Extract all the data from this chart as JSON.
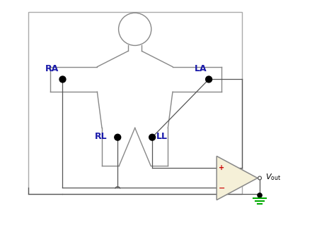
{
  "bg_color": "#ffffff",
  "body_color": "#888888",
  "wire_color": "#555555",
  "label_color": "#1a1aaa",
  "opamp_fill": "#f5f0d8",
  "opamp_edge": "#888888",
  "ground_color": "#00aa00",
  "plus_color": "#cc0000",
  "minus_color": "#cc0000",
  "vout_color": "#000000",
  "dot_color": "#000000",
  "figure_size": [
    4.48,
    3.36
  ],
  "dpi": 100,
  "xlim": [
    0,
    10
  ],
  "ylim": [
    0,
    7.5
  ]
}
